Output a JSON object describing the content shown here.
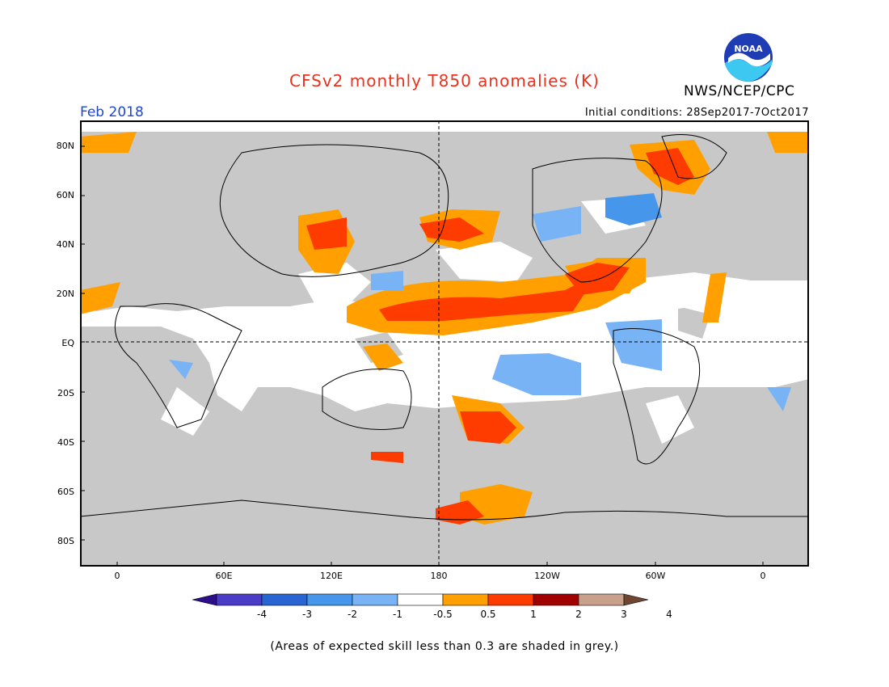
{
  "header": {
    "title": "CFSv2 monthly T850 anomalies (K)",
    "agency": "NWS/NCEP/CPC",
    "month": "Feb 2018",
    "initial_conditions_label": "Initial conditions:",
    "initial_conditions_value": "28Sep2017-7Oct2017"
  },
  "logo": {
    "icon": "noaa-logo-icon",
    "text": "NOAA"
  },
  "axes": {
    "lat_labels": [
      "80N",
      "60N",
      "40N",
      "20N",
      "EQ",
      "20S",
      "40S",
      "60S",
      "80S"
    ],
    "lon_labels": [
      "0",
      "60E",
      "120E",
      "180",
      "120W",
      "60W",
      "0"
    ]
  },
  "colorbar": {
    "labels": [
      "-4",
      "-3",
      "-2",
      "-1",
      "-0.5",
      "0.5",
      "1",
      "2",
      "3",
      "4"
    ],
    "colors": [
      "#2d0f8c",
      "#4b3cc8",
      "#2864d2",
      "#4696eb",
      "#78b4f5",
      "#ffffff",
      "#ffa000",
      "#ff3c00",
      "#a00000",
      "#c8a08c",
      "#6e4632"
    ]
  },
  "caption": "(Areas of expected skill less than 0.3 are shaded in grey.)",
  "map_colors": {
    "skill_grey": "#c8c8c8",
    "ocean_white": "#ffffff",
    "coast": "#000000"
  }
}
